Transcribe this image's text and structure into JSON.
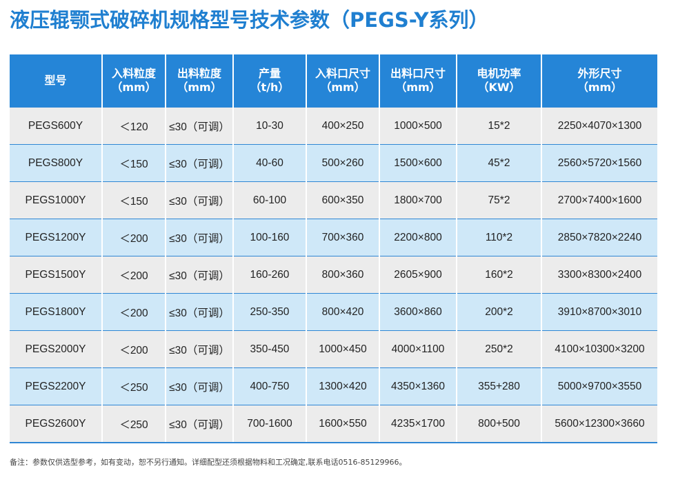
{
  "title": "液压辊颚式破碎机规格型号技术参数（PEGS-Y系列）",
  "colors": {
    "title": "#1f7fd0",
    "header_bg": "#2585d7",
    "row_odd": "#ececec",
    "row_even": "#cfe8f8"
  },
  "table": {
    "headers": [
      {
        "line1": "型号",
        "line2": ""
      },
      {
        "line1": "入料粒度",
        "line2": "（mm）"
      },
      {
        "line1": "出料粒度",
        "line2": "（mm）"
      },
      {
        "line1": "产量",
        "line2": "（t/h）"
      },
      {
        "line1": "入料口尺寸",
        "line2": "（mm）"
      },
      {
        "line1": "出料口尺寸",
        "line2": "（mm）"
      },
      {
        "line1": "电机功率",
        "line2": "（KW）"
      },
      {
        "line1": "外形尺寸",
        "line2": "（mm）"
      }
    ],
    "rows": [
      [
        "PEGS600Y",
        "＜120",
        "≤30（可调）",
        "10-30",
        "400×250",
        "1000×500",
        "15*2",
        "2250×4070×1300"
      ],
      [
        "PEGS800Y",
        "＜150",
        "≤30（可调）",
        "40-60",
        "500×260",
        "1500×600",
        "45*2",
        "2560×5720×1560"
      ],
      [
        "PEGS1000Y",
        "＜150",
        "≤30（可调）",
        "60-100",
        "600×350",
        "1800×700",
        "75*2",
        "2700×7400×1600"
      ],
      [
        "PEGS1200Y",
        "＜200",
        "≤30（可调）",
        "100-160",
        "700×360",
        "2200×800",
        "110*2",
        "2850×7820×2240"
      ],
      [
        "PEGS1500Y",
        "＜200",
        "≤30（可调）",
        "160-260",
        "800×360",
        "2605×900",
        "160*2",
        "3300×8300×2400"
      ],
      [
        "PEGS1800Y",
        "＜200",
        "≤30（可调）",
        "250-350",
        "800×420",
        "3600×860",
        "200*2",
        "3910×8700×3010"
      ],
      [
        "PEGS2000Y",
        "＜200",
        "≤30（可调）",
        "350-450",
        "1000×450",
        "4000×1100",
        "250*2",
        "4100×10300×3200"
      ],
      [
        "PEGS2200Y",
        "＜250",
        "≤30（可调）",
        "400-750",
        "1300×420",
        "4350×1360",
        "355+280",
        "5000×9700×3550"
      ],
      [
        "PEGS2600Y",
        "＜250",
        "≤30（可调）",
        "700-1600",
        "1600×550",
        "4235×1700",
        "800+500",
        "5600×12300×3660"
      ]
    ]
  },
  "note": "备注：参数仅供选型参考，如有变动，恕不另行通知。详细配型还须根据物料和工况确定,联系电话0516-85129966。"
}
